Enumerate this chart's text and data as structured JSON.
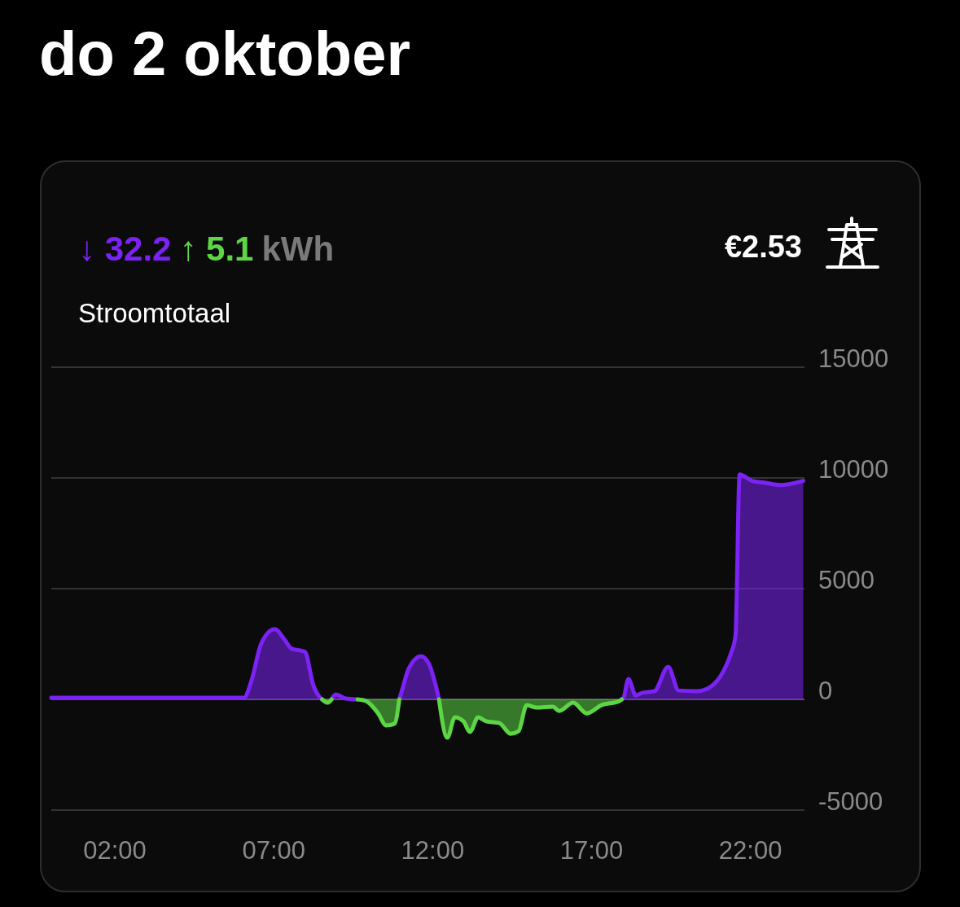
{
  "chart_data": {
    "type": "area",
    "title": "do 2 oktober",
    "subtitle": "Stroomtotaal",
    "annotations": [
      "↓ 32.2",
      "↑ 5.1",
      "kWh",
      "€2.53"
    ],
    "x": [
      0,
      6.06,
      6.3,
      6.6,
      7.03,
      7.34,
      7.55,
      7.98,
      8.24,
      8.44,
      8.52,
      8.7,
      8.82,
      8.95,
      9.26,
      9.64,
      9.9,
      10.28,
      10.54,
      10.8,
      10.95,
      11.05,
      11.25,
      11.64,
      11.89,
      12.2,
      12.46,
      12.7,
      12.97,
      13.17,
      13.43,
      13.68,
      14.1,
      14.45,
      14.7,
      14.96,
      15.27,
      15.78,
      15.98,
      16.42,
      16.85,
      17.31,
      17.88,
      17.95,
      18.0,
      18.16,
      18.39,
      18.6,
      18.98,
      19.41,
      19.74,
      20.3,
      20.64,
      21.4,
      21.53,
      21.66,
      22.05,
      22.43,
      22.94,
      23.66
    ],
    "series": [
      {
        "color": "#7b22f5",
        "values": [
          70,
          70,
          850,
          2500,
          3170,
          2700,
          2300,
          2150,
          660,
          110,
          0,
          null,
          0,
          220,
          40,
          0,
          null,
          null,
          null,
          null,
          0,
          480,
          1400,
          1950,
          1580,
          0,
          null,
          null,
          null,
          null,
          null,
          null,
          null,
          null,
          null,
          null,
          null,
          null,
          null,
          null,
          null,
          null,
          null,
          0,
          40,
          920,
          180,
          300,
          370,
          1470,
          400,
          370,
          480,
          2130,
          2870,
          10160,
          9870,
          9790,
          9680,
          9870
        ]
      },
      {
        "color": "#5cd645",
        "values": [
          null,
          null,
          null,
          null,
          null,
          null,
          null,
          null,
          null,
          null,
          0,
          -150,
          0,
          null,
          null,
          0,
          -70,
          -620,
          -1180,
          -1100,
          0,
          null,
          null,
          null,
          null,
          0,
          -1730,
          -810,
          -990,
          -1470,
          -810,
          -990,
          -1070,
          -1550,
          -1440,
          -260,
          -370,
          -330,
          -520,
          -150,
          -630,
          -260,
          -70,
          0,
          null,
          null,
          null,
          null,
          null,
          null,
          null,
          null,
          null,
          null,
          null,
          null,
          null,
          null,
          null,
          null
        ]
      }
    ],
    "xlim": [
      0,
      23.7
    ],
    "ylim": [
      -5000,
      15000
    ],
    "xticks": [
      {
        "value": 2,
        "label": "02:00"
      },
      {
        "value": 7,
        "label": "07:00"
      },
      {
        "value": 12,
        "label": "12:00"
      },
      {
        "value": 17,
        "label": "17:00"
      },
      {
        "value": 22,
        "label": "22:00"
      }
    ],
    "yticks": [
      -5000,
      0,
      5000,
      10000,
      15000
    ],
    "grid": "y"
  }
}
